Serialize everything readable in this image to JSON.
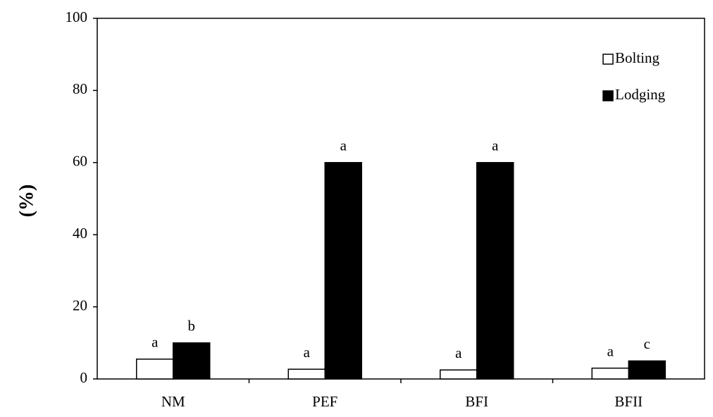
{
  "chart_data": {
    "type": "bar",
    "y_label": "(%)",
    "categories": [
      "NM",
      "PEF",
      "BFI",
      "BFII"
    ],
    "series": [
      {
        "name": "Bolting",
        "color": "#ffffff",
        "values": [
          5.5,
          2.7,
          2.5,
          3
        ],
        "letters": [
          "a",
          "a",
          "a",
          "a"
        ]
      },
      {
        "name": "Lodging",
        "color": "#000000",
        "values": [
          10,
          60,
          60,
          5
        ],
        "letters": [
          "b",
          "a",
          "a",
          "c"
        ]
      }
    ],
    "ylim": [
      0,
      100
    ],
    "yticks": [
      0,
      20,
      40,
      60,
      80,
      100
    ],
    "legend": "upper right"
  }
}
